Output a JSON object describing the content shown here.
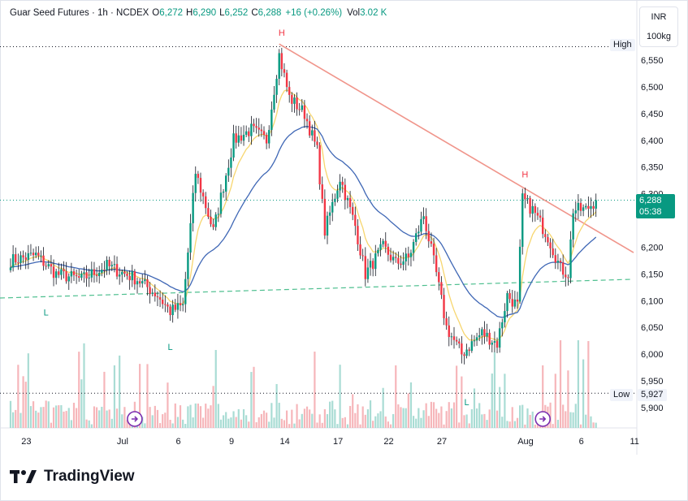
{
  "header": {
    "title": "Guar Seed Futures · 1h · NCDEX",
    "open_label": "O",
    "open": "6,272",
    "high_label": "H",
    "high": "6,290",
    "low_label": "L",
    "low": "6,252",
    "close_label": "C",
    "close": "6,288",
    "change": "+16 (+0.26%)",
    "vol_label": "Vol",
    "vol": "3.02 K"
  },
  "currency": {
    "unit": "INR",
    "lot": "100kg"
  },
  "price_tag": {
    "price": "6,288",
    "timer": "05:38"
  },
  "high_tag": {
    "label": "High"
  },
  "low_tag": {
    "label": "Low",
    "value": "5,927"
  },
  "brand": {
    "name": "TradingView",
    "logo": "tradingview-logo"
  },
  "colors": {
    "up": "#089981",
    "down": "#f23645",
    "wick": "#131722",
    "ema_fast": "#f7d66f",
    "ema_slow": "#3f67b5",
    "trendline": "#f0958b",
    "support": "#4ebf8f",
    "marker": "#7b2fb0"
  },
  "chart_data": {
    "type": "candlestick",
    "symbol": "Guar Seed Futures",
    "y_ticks": [
      5900,
      5950,
      6000,
      6050,
      6100,
      6150,
      6200,
      6250,
      6300,
      6350,
      6400,
      6450,
      6500,
      6550
    ],
    "y_tick_labels": [
      "5,900",
      "5,950",
      "6,000",
      "6,050",
      "6,100",
      "6,150",
      "6,200",
      "",
      "6,300",
      "6,350",
      "6,400",
      "6,450",
      "6,500",
      "6,550"
    ],
    "x_tick_labels": [
      "23",
      "Jul",
      "6",
      "9",
      "14",
      "17",
      "22",
      "27",
      "Aug",
      "6",
      "11"
    ],
    "ylim": [
      5880,
      6620
    ],
    "bar_count": 232,
    "x_tick_bar_index": [
      3,
      41,
      63,
      84,
      105,
      126,
      146,
      167,
      200,
      222,
      243
    ],
    "anchors": [
      {
        "bar": 0,
        "price": 6175
      },
      {
        "bar": 10,
        "price": 6185
      },
      {
        "bar": 18,
        "price": 6150
      },
      {
        "bar": 28,
        "price": 6140
      },
      {
        "bar": 38,
        "price": 6165
      },
      {
        "bar": 50,
        "price": 6140
      },
      {
        "bar": 58,
        "price": 6110
      },
      {
        "bar": 63,
        "price": 6080
      },
      {
        "bar": 68,
        "price": 6090
      },
      {
        "bar": 73,
        "price": 6340
      },
      {
        "bar": 80,
        "price": 6230
      },
      {
        "bar": 88,
        "price": 6400
      },
      {
        "bar": 95,
        "price": 6420
      },
      {
        "bar": 101,
        "price": 6400
      },
      {
        "bar": 106,
        "price": 6560
      },
      {
        "bar": 110,
        "price": 6480
      },
      {
        "bar": 116,
        "price": 6450
      },
      {
        "bar": 121,
        "price": 6380
      },
      {
        "bar": 124,
        "price": 6230
      },
      {
        "bar": 130,
        "price": 6330
      },
      {
        "bar": 136,
        "price": 6240
      },
      {
        "bar": 140,
        "price": 6150
      },
      {
        "bar": 147,
        "price": 6200
      },
      {
        "bar": 152,
        "price": 6170
      },
      {
        "bar": 157,
        "price": 6180
      },
      {
        "bar": 163,
        "price": 6260
      },
      {
        "bar": 168,
        "price": 6150
      },
      {
        "bar": 172,
        "price": 6050
      },
      {
        "bar": 178,
        "price": 6000
      },
      {
        "bar": 186,
        "price": 6040
      },
      {
        "bar": 192,
        "price": 6020
      },
      {
        "bar": 196,
        "price": 6110
      },
      {
        "bar": 200,
        "price": 6090
      },
      {
        "bar": 202,
        "price": 6290
      },
      {
        "bar": 206,
        "price": 6270
      },
      {
        "bar": 212,
        "price": 6220
      },
      {
        "bar": 217,
        "price": 6160
      },
      {
        "bar": 220,
        "price": 6150
      },
      {
        "bar": 222,
        "price": 6270
      },
      {
        "bar": 227,
        "price": 6270
      },
      {
        "bar": 231,
        "price": 6288
      }
    ],
    "overlays": {
      "trendline": {
        "from": {
          "bar": 106,
          "price": 6580
        },
        "to": {
          "bar": 252,
          "price": 6190
        }
      },
      "support": {
        "from": {
          "bar": 0,
          "price": 6105
        },
        "to": {
          "bar": 252,
          "price": 6140
        }
      },
      "high_level": 6575,
      "low_level": 5927,
      "last_price": 6288
    },
    "pivots": [
      {
        "label": "H",
        "bar": 107,
        "price": 6580,
        "pos": "above"
      },
      {
        "label": "H",
        "bar": 203,
        "price": 6315,
        "pos": "above"
      },
      {
        "label": "L",
        "bar": 14,
        "price": 6100,
        "pos": "below"
      },
      {
        "label": "L",
        "bar": 63,
        "price": 6035,
        "pos": "below"
      },
      {
        "label": "L",
        "bar": 180,
        "price": 5932,
        "pos": "below"
      }
    ],
    "event_markers": [
      {
        "bar": 49
      },
      {
        "bar": 210
      }
    ]
  }
}
